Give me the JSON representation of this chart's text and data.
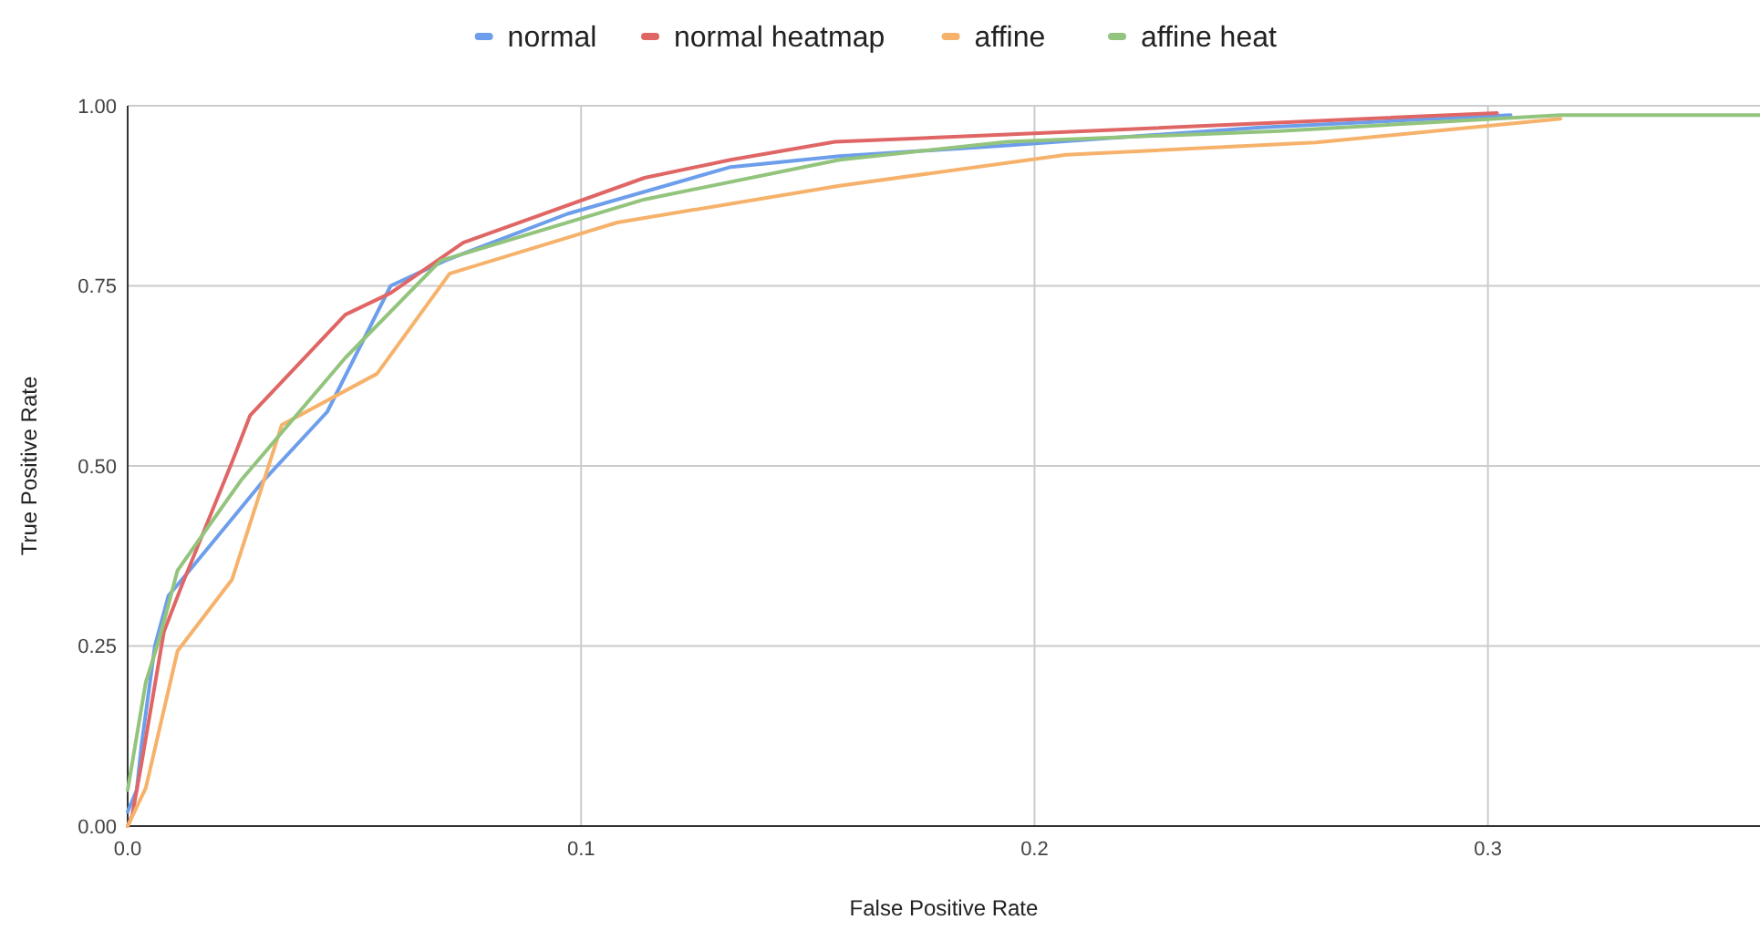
{
  "chart_data": {
    "type": "line",
    "xlabel": "False Positive Rate",
    "ylabel": "True Positive Rate",
    "xlim": [
      0,
      0.36
    ],
    "ylim": [
      0,
      1
    ],
    "xticks": [
      {
        "value": 0,
        "label": "0.0"
      },
      {
        "value": 0.1,
        "label": "0.1"
      },
      {
        "value": 0.2,
        "label": "0.2"
      },
      {
        "value": 0.3,
        "label": "0.3"
      }
    ],
    "yticks": [
      {
        "value": 0,
        "label": "0.00"
      },
      {
        "value": 0.25,
        "label": "0.25"
      },
      {
        "value": 0.5,
        "label": "0.50"
      },
      {
        "value": 0.75,
        "label": "0.75"
      },
      {
        "value": 1,
        "label": "1.00"
      }
    ],
    "grid": true,
    "legend": "top",
    "marker": "none",
    "line_style": "solid",
    "series": [
      {
        "name": "normal",
        "color": "#6d9eeb",
        "x": [
          0,
          0.002,
          0.003,
          0.006,
          0.009,
          0.013,
          0.03,
          0.044,
          0.058,
          0.07,
          0.097,
          0.133,
          0.157,
          0.194,
          0.25,
          0.305
        ],
        "values": [
          0.02,
          0.05,
          0.11,
          0.25,
          0.32,
          0.35,
          0.48,
          0.575,
          0.75,
          0.785,
          0.85,
          0.915,
          0.93,
          0.945,
          0.97,
          0.987
        ]
      },
      {
        "name": "normal heatmap",
        "color": "#e06666",
        "x": [
          0,
          0.001,
          0.003,
          0.008,
          0.012,
          0.023,
          0.027,
          0.048,
          0.058,
          0.074,
          0.114,
          0.133,
          0.156,
          0.194,
          0.302
        ],
        "values": [
          0,
          0.015,
          0.085,
          0.27,
          0.335,
          0.505,
          0.57,
          0.71,
          0.74,
          0.81,
          0.9,
          0.925,
          0.95,
          0.96,
          0.99
        ]
      },
      {
        "name": "affine",
        "color": "#f6b26b",
        "x": [
          0,
          0.004,
          0.011,
          0.023,
          0.034,
          0.055,
          0.071,
          0.108,
          0.157,
          0.207,
          0.262,
          0.316
        ],
        "values": [
          0,
          0.053,
          0.243,
          0.342,
          0.557,
          0.628,
          0.767,
          0.838,
          0.889,
          0.932,
          0.949,
          0.982
        ]
      },
      {
        "name": "affine heat",
        "color": "#93c47d",
        "x": [
          0,
          0.004,
          0.007,
          0.011,
          0.025,
          0.048,
          0.069,
          0.114,
          0.157,
          0.194,
          0.254,
          0.316,
          0.36
        ],
        "values": [
          0.05,
          0.2,
          0.26,
          0.355,
          0.48,
          0.65,
          0.785,
          0.87,
          0.925,
          0.95,
          0.965,
          0.987,
          0.987
        ]
      }
    ]
  }
}
